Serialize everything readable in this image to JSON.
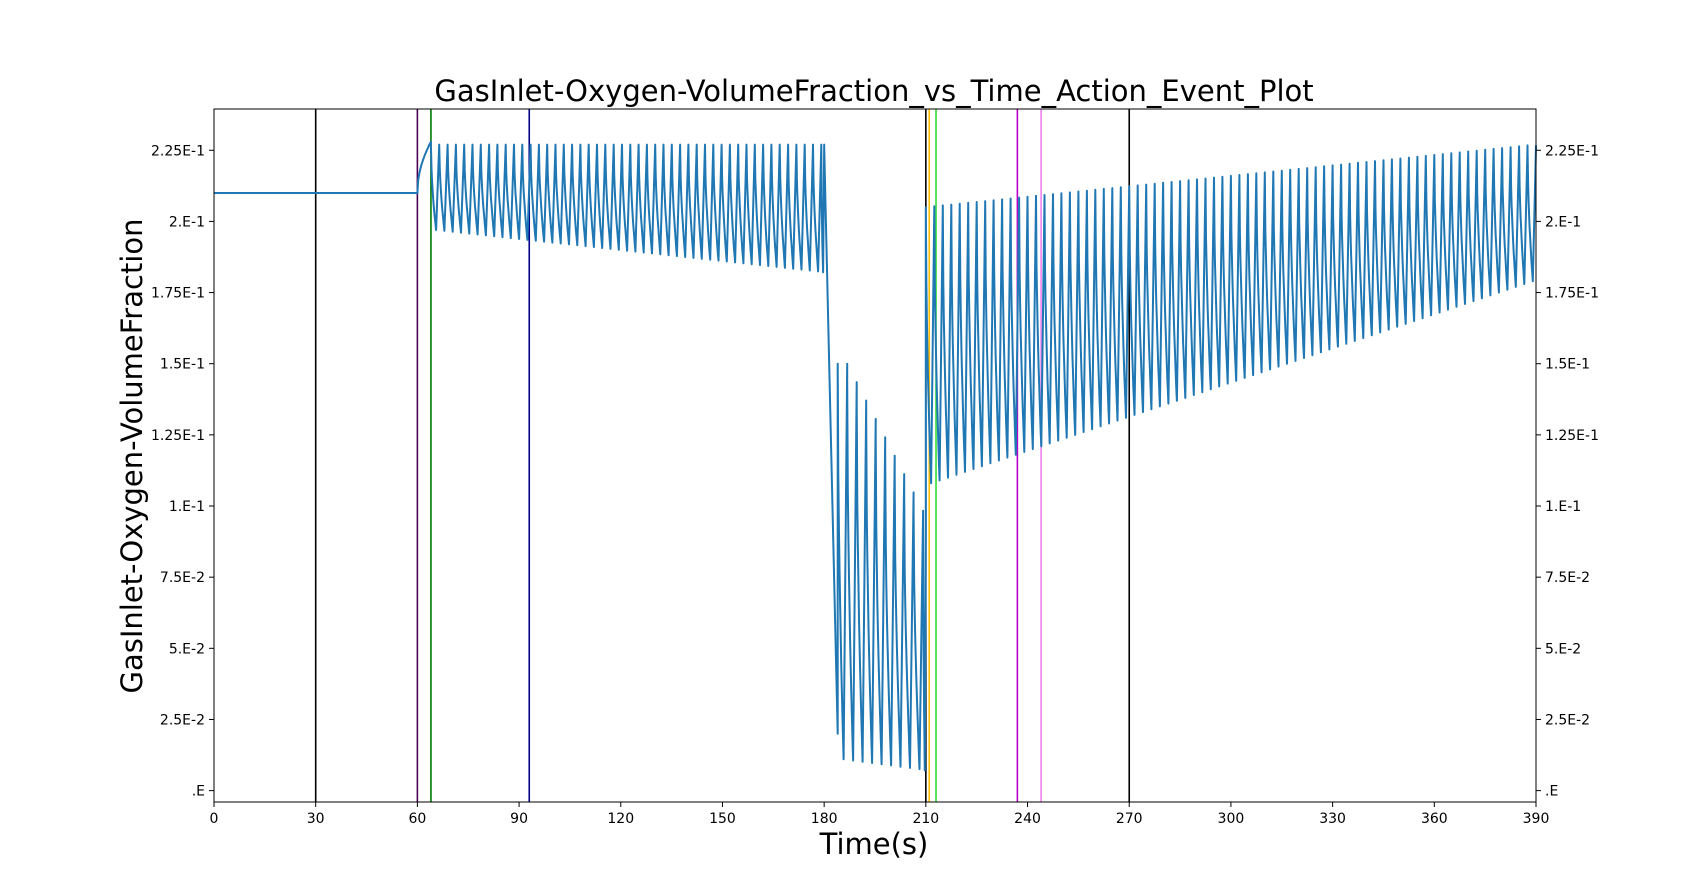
{
  "chart_data": {
    "type": "line",
    "title": "GasInlet-Oxygen-VolumeFraction_vs_Time_Action_Event_Plot",
    "xlabel": "Time(s)",
    "ylabel": "GasInlet-Oxygen-VolumeFraction",
    "xlim": [
      0,
      390
    ],
    "ylim": [
      -0.004,
      0.2395
    ],
    "x_ticks": [
      0,
      30,
      60,
      90,
      120,
      150,
      180,
      210,
      240,
      270,
      300,
      330,
      360,
      390
    ],
    "x_tick_labels": [
      "0",
      "30",
      "60",
      "90",
      "120",
      "150",
      "180",
      "210",
      "240",
      "270",
      "300",
      "330",
      "360",
      "390"
    ],
    "y_ticks": [
      0,
      0.025,
      0.05,
      0.075,
      0.1,
      0.125,
      0.15,
      0.175,
      0.2,
      0.225
    ],
    "y_tick_labels": [
      ".E",
      "2.5E-2",
      "5.E-2",
      "7.5E-2",
      "1.E-1",
      "1.25E-1",
      "1.5E-1",
      "1.75E-1",
      "2.E-1",
      "2.25E-1"
    ],
    "right_axis_mirrored": true,
    "grid": false,
    "series_color": "#1f77b4",
    "event_lines": [
      {
        "x": 30,
        "color": "#000000"
      },
      {
        "x": 60,
        "color": "#4b0055"
      },
      {
        "x": 64,
        "color": "#007a00"
      },
      {
        "x": 93,
        "color": "#00008b"
      },
      {
        "x": 210,
        "color": "#000000"
      },
      {
        "x": 211,
        "color": "#ffbf00"
      },
      {
        "x": 213,
        "color": "#33dd33"
      },
      {
        "x": 237,
        "color": "#bb00cc"
      },
      {
        "x": 244,
        "color": "#ee82ee"
      },
      {
        "x": 270,
        "color": "#000000"
      }
    ],
    "series": [
      {
        "segments": [
          {
            "x_start": 0,
            "x_end": 60,
            "pattern": "constant",
            "value": 0.21
          },
          {
            "x_start": 60,
            "x_end": 64,
            "pattern": "rise",
            "from": 0.21,
            "to": 0.228
          },
          {
            "x_start": 64,
            "x_end": 180,
            "pattern": "breathing",
            "period": 2.45,
            "peak": 0.227,
            "trough_start": 0.197,
            "trough_end": 0.182
          },
          {
            "x_start": 180,
            "x_end": 184,
            "pattern": "drop",
            "from": 0.226,
            "to": 0.02
          },
          {
            "x_start": 184,
            "x_end": 210,
            "pattern": "breathing",
            "period": 2.8,
            "peak_start": 0.15,
            "peak_end": 0.09,
            "trough_start": 0.011,
            "trough_end": 0.007
          },
          {
            "x_start": 210,
            "x_end": 390,
            "pattern": "breathing",
            "period": 2.5,
            "peak_start": 0.205,
            "peak_end": 0.227,
            "trough_start": 0.108,
            "trough_end": 0.18
          }
        ]
      }
    ]
  }
}
